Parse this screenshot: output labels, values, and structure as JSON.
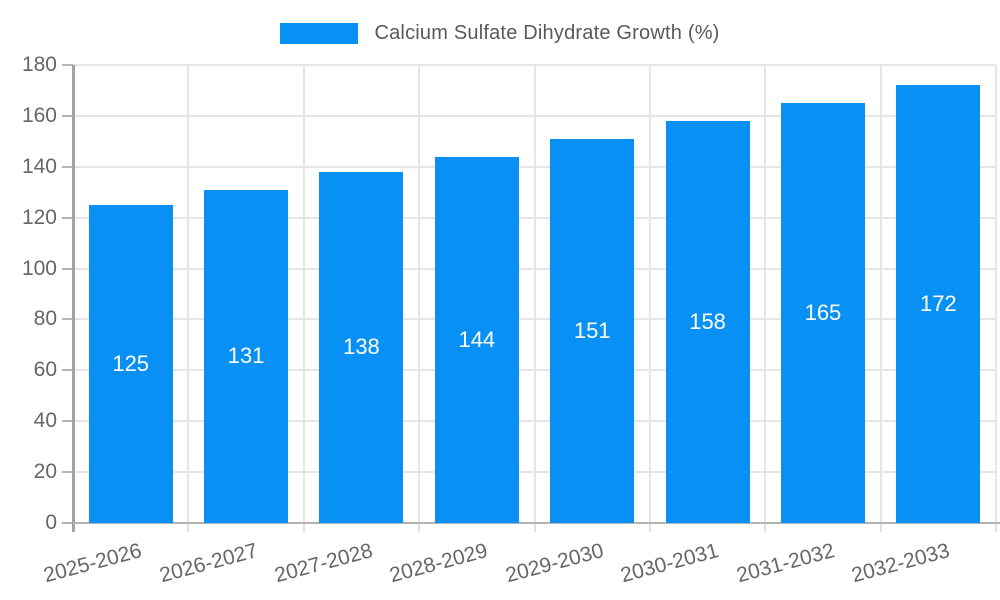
{
  "legend": {
    "label": "Calcium Sulfate Dihydrate Growth (%)"
  },
  "colors": {
    "bar": "#0990f5",
    "grid": "#e6e6e6",
    "axis": "#a3a3a3",
    "x_tick": "#e0e0e0",
    "y_tick": "#b5b5b5",
    "tick_text": "#666666",
    "legend_text": "#595959",
    "bar_label_text": "#ffffff"
  },
  "chart_data": {
    "type": "bar",
    "title": "Calcium Sulfate Dihydrate Growth (%)",
    "categories": [
      "2025-2026",
      "2026-2027",
      "2027-2028",
      "2028-2029",
      "2029-2030",
      "2030-2031",
      "2031-2032",
      "2032-2033"
    ],
    "values": [
      125,
      131,
      138,
      144,
      151,
      158,
      165,
      172
    ],
    "bar_labels": [
      "125",
      "131",
      "138",
      "144",
      "151",
      "158",
      "165",
      "172"
    ],
    "xlabel": "",
    "ylabel": "",
    "ylim": [
      0,
      180
    ],
    "yticks": [
      0,
      20,
      40,
      60,
      80,
      100,
      120,
      140,
      160,
      180
    ],
    "grid": true,
    "legend_position": "top",
    "bar_color": "#0990f5",
    "value_label_position": "center-inside"
  }
}
